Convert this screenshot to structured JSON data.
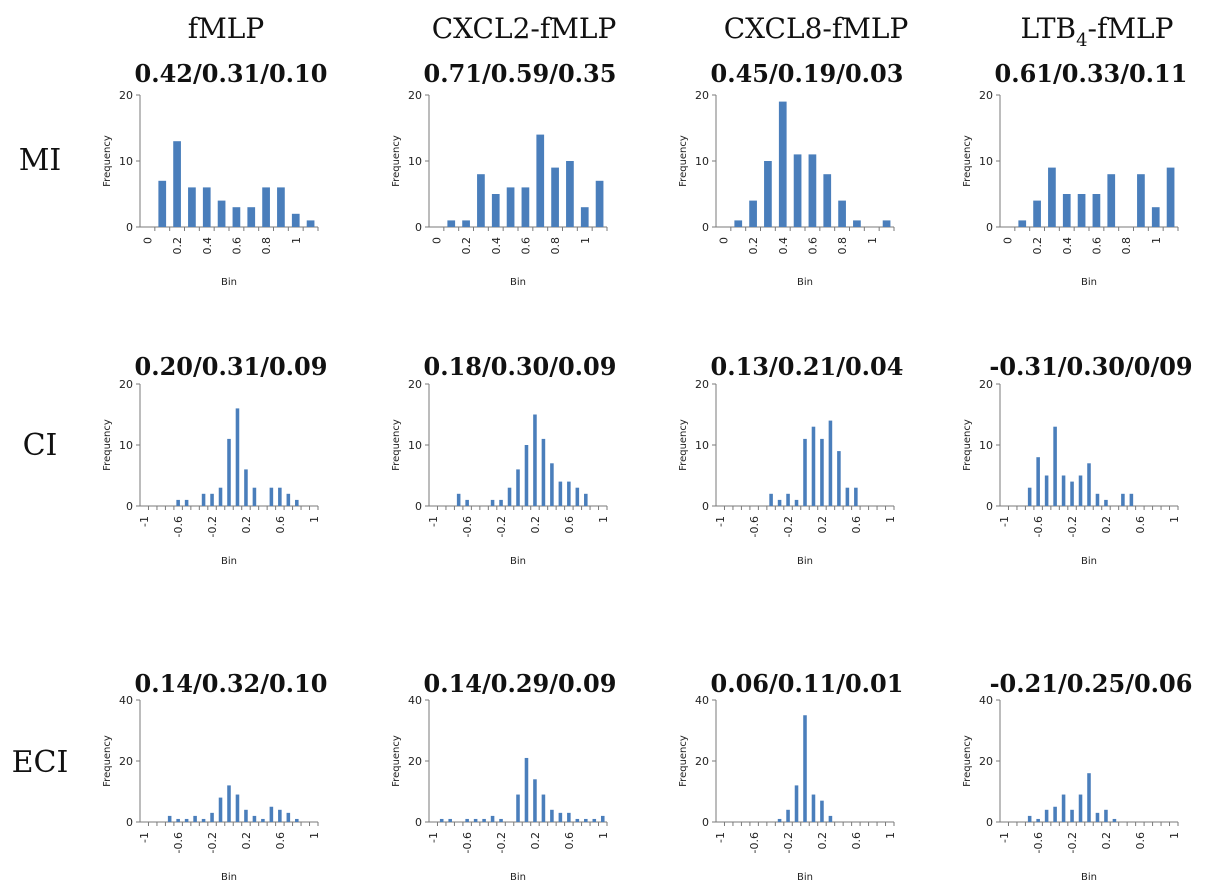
{
  "columns": [
    "fMLP",
    "CXCL2-fMLP",
    "CXCL8-fMLP",
    "LTB4-fMLP"
  ],
  "column_sub": {
    "text": "4",
    "column_index": 3
  },
  "rows": [
    "MI",
    "CI",
    "ECI"
  ],
  "colors": {
    "bar": "#4a7ebb",
    "axis": "#7a7a7a"
  },
  "chart_data": [
    {
      "type": "bar",
      "row": "MI",
      "column": "fMLP",
      "title": "0.42/0.31/0.10",
      "xlabel": "Bin",
      "ylabel": "Frequency",
      "ylim": [
        0,
        20
      ],
      "yticks": [
        0,
        10,
        20
      ],
      "xtick_labels": [
        "0",
        "0.2",
        "0.4",
        "0.6",
        "0.8",
        "1"
      ],
      "bin_first": 0,
      "bin_step": 0.1,
      "values": [
        0,
        7,
        13,
        6,
        6,
        4,
        3,
        3,
        6,
        6,
        2,
        1
      ]
    },
    {
      "type": "bar",
      "row": "MI",
      "column": "CXCL2-fMLP",
      "title": "0.71/0.59/0.35",
      "xlabel": "Bin",
      "ylabel": "Frequency",
      "ylim": [
        0,
        20
      ],
      "yticks": [
        0,
        10,
        20
      ],
      "xtick_labels": [
        "0",
        "0.2",
        "0.4",
        "0.6",
        "0.8",
        "1"
      ],
      "bin_first": 0,
      "bin_step": 0.1,
      "values": [
        0,
        1,
        1,
        8,
        5,
        6,
        6,
        14,
        9,
        10,
        3,
        7
      ]
    },
    {
      "type": "bar",
      "row": "MI",
      "column": "CXCL8-fMLP",
      "title": "0.45/0.19/0.03",
      "xlabel": "Bin",
      "ylabel": "Frequency",
      "ylim": [
        0,
        20
      ],
      "yticks": [
        0,
        10,
        20
      ],
      "xtick_labels": [
        "0",
        "0.2",
        "0.4",
        "0.6",
        "0.8",
        "1"
      ],
      "bin_first": 0,
      "bin_step": 0.1,
      "values": [
        0,
        1,
        4,
        10,
        19,
        11,
        11,
        8,
        4,
        1,
        0,
        1
      ]
    },
    {
      "type": "bar",
      "row": "MI",
      "column": "LTB4-fMLP",
      "title": "0.61/0.33/0.11",
      "xlabel": "Bin",
      "ylabel": "Frequency",
      "ylim": [
        0,
        20
      ],
      "yticks": [
        0,
        10,
        20
      ],
      "xtick_labels": [
        "0",
        "0.2",
        "0.4",
        "0.6",
        "0.8",
        "1"
      ],
      "bin_first": 0,
      "bin_step": 0.1,
      "values": [
        0,
        1,
        4,
        9,
        5,
        5,
        5,
        8,
        0,
        8,
        3,
        9
      ]
    },
    {
      "type": "bar",
      "row": "CI",
      "column": "fMLP",
      "title": "0.20/0.31/0.09",
      "xlabel": "Bin",
      "ylabel": "Frequency",
      "ylim": [
        0,
        20
      ],
      "yticks": [
        0,
        10,
        20
      ],
      "xtick_labels": [
        "-1",
        "-0.6",
        "-0.2",
        "0.2",
        "0.6",
        "1"
      ],
      "bin_first": -1,
      "bin_step": 0.1,
      "values": [
        0,
        0,
        0,
        0,
        1,
        1,
        0,
        2,
        2,
        3,
        11,
        16,
        6,
        3,
        0,
        3,
        3,
        2,
        1,
        0,
        0
      ]
    },
    {
      "type": "bar",
      "row": "CI",
      "column": "CXCL2-fMLP",
      "title": "0.18/0.30/0.09",
      "xlabel": "Bin",
      "ylabel": "Frequency",
      "ylim": [
        0,
        20
      ],
      "yticks": [
        0,
        10,
        20
      ],
      "xtick_labels": [
        "-1",
        "-0.6",
        "-0.2",
        "0.2",
        "0.6",
        "1"
      ],
      "bin_first": -1,
      "bin_step": 0.1,
      "values": [
        0,
        0,
        0,
        2,
        1,
        0,
        0,
        1,
        1,
        3,
        6,
        10,
        15,
        11,
        7,
        4,
        4,
        3,
        2,
        0,
        0
      ]
    },
    {
      "type": "bar",
      "row": "CI",
      "column": "CXCL8-fMLP",
      "title": "0.13/0.21/0.04",
      "xlabel": "Bin",
      "ylabel": "Frequency",
      "ylim": [
        0,
        20
      ],
      "yticks": [
        0,
        10,
        20
      ],
      "xtick_labels": [
        "-1",
        "-0.6",
        "-0.2",
        "0.2",
        "0.6",
        "1"
      ],
      "bin_first": -1,
      "bin_step": 0.1,
      "values": [
        0,
        0,
        0,
        0,
        0,
        0,
        2,
        1,
        2,
        1,
        11,
        13,
        11,
        14,
        9,
        3,
        3,
        0,
        0,
        0,
        0
      ]
    },
    {
      "type": "bar",
      "row": "CI",
      "column": "LTB4-fMLP",
      "title": "-0.31/0.30/0/09",
      "xlabel": "Bin",
      "ylabel": "Frequency",
      "ylim": [
        0,
        20
      ],
      "yticks": [
        0,
        10,
        20
      ],
      "xtick_labels": [
        "-1",
        "-0.6",
        "-0.2",
        "0.2",
        "0.6",
        "1"
      ],
      "bin_first": -1,
      "bin_step": 0.1,
      "values": [
        0,
        0,
        0,
        3,
        8,
        5,
        13,
        5,
        4,
        5,
        7,
        2,
        1,
        0,
        2,
        2,
        0,
        0,
        0,
        0,
        0
      ]
    },
    {
      "type": "bar",
      "row": "ECI",
      "column": "fMLP",
      "title": "0.14/0.32/0.10",
      "xlabel": "Bin",
      "ylabel": "Frequency",
      "ylim": [
        0,
        40
      ],
      "yticks": [
        0,
        20,
        40
      ],
      "xtick_labels": [
        "-1",
        "-0.6",
        "-0.2",
        "0.2",
        "0.6",
        "1"
      ],
      "bin_first": -1,
      "bin_step": 0.1,
      "values": [
        0,
        0,
        0,
        2,
        1,
        1,
        2,
        1,
        3,
        8,
        12,
        9,
        4,
        2,
        1,
        5,
        4,
        3,
        1,
        0,
        0
      ]
    },
    {
      "type": "bar",
      "row": "ECI",
      "column": "CXCL2-fMLP",
      "title": "0.14/0.29/0.09",
      "xlabel": "Bin",
      "ylabel": "Frequency",
      "ylim": [
        0,
        40
      ],
      "yticks": [
        0,
        20,
        40
      ],
      "xtick_labels": [
        "-1",
        "-0.6",
        "-0.2",
        "0.2",
        "0.6",
        "1"
      ],
      "bin_first": -1,
      "bin_step": 0.1,
      "values": [
        0,
        1,
        1,
        0,
        1,
        1,
        1,
        2,
        1,
        0,
        9,
        21,
        14,
        9,
        4,
        3,
        3,
        1,
        1,
        1,
        2
      ]
    },
    {
      "type": "bar",
      "row": "ECI",
      "column": "CXCL8-fMLP",
      "title": "0.06/0.11/0.01",
      "xlabel": "Bin",
      "ylabel": "Frequency",
      "ylim": [
        0,
        40
      ],
      "yticks": [
        0,
        20,
        40
      ],
      "xtick_labels": [
        "-1",
        "-0.6",
        "-0.2",
        "0.2",
        "0.6",
        "1"
      ],
      "bin_first": -1,
      "bin_step": 0.1,
      "values": [
        0,
        0,
        0,
        0,
        0,
        0,
        0,
        1,
        4,
        12,
        35,
        9,
        7,
        2,
        0,
        0,
        0,
        0,
        0,
        0,
        0
      ]
    },
    {
      "type": "bar",
      "row": "ECI",
      "column": "LTB4-fMLP",
      "title": "-0.21/0.25/0.06",
      "xlabel": "Bin",
      "ylabel": "Frequency",
      "ylim": [
        0,
        40
      ],
      "yticks": [
        0,
        20,
        40
      ],
      "xtick_labels": [
        "-1",
        "-0.6",
        "-0.2",
        "0.2",
        "0.6",
        "1"
      ],
      "bin_first": -1,
      "bin_step": 0.1,
      "values": [
        0,
        0,
        0,
        2,
        1,
        4,
        5,
        9,
        4,
        9,
        16,
        3,
        4,
        1,
        0,
        0,
        0,
        0,
        0,
        0,
        0
      ]
    }
  ]
}
